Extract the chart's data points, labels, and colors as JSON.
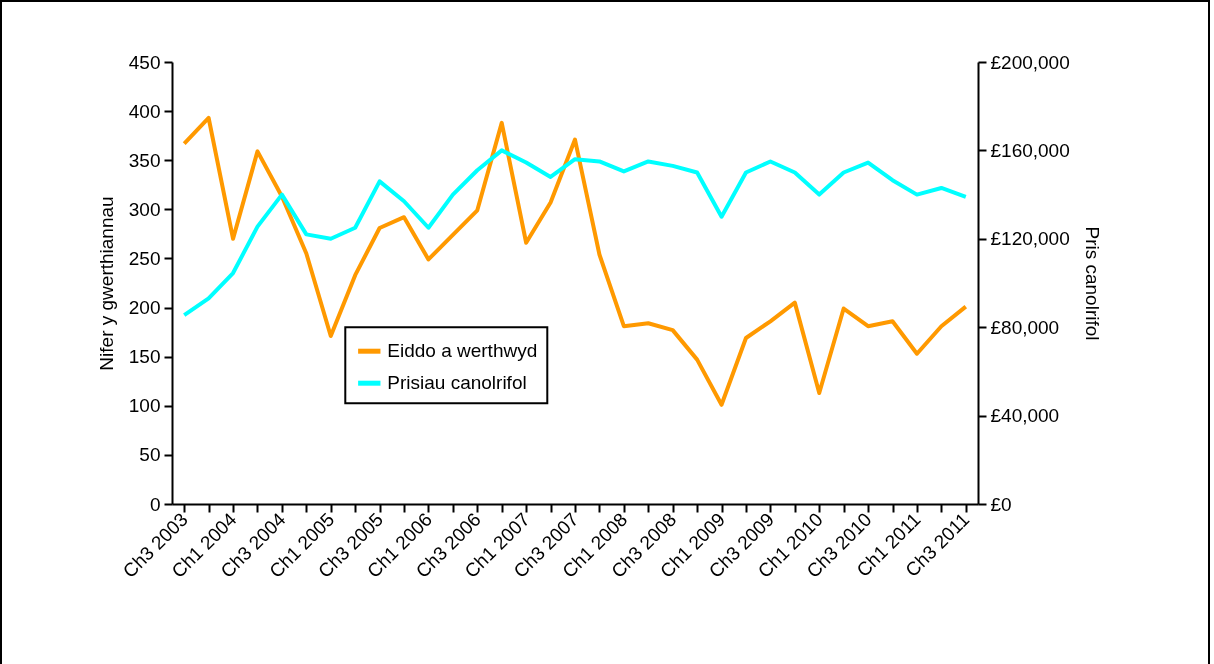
{
  "chart_data": {
    "type": "line",
    "xlabel": null,
    "ylabel": "Nifer y gwerthiannau",
    "y2label": "Pris canolrifol",
    "categories": [
      "Ch3 2003",
      null,
      "Ch1 2004",
      null,
      "Ch3 2004",
      null,
      "Ch1 2005",
      null,
      "Ch3 2005",
      null,
      "Ch1 2006",
      null,
      "Ch3 2006",
      null,
      "Ch1 2007",
      null,
      "Ch3 2007",
      null,
      "Ch1 2008",
      null,
      "Ch3 2008",
      null,
      "Ch1 2009",
      null,
      "Ch3 2009",
      null,
      "Ch1 2010",
      null,
      "Ch3 2010",
      null,
      "Ch1 2011",
      null,
      "Ch3 2011"
    ],
    "series": [
      {
        "name": "Eiddo a werthwyd",
        "color": "#ff9900",
        "values": [
          367,
          393,
          270,
          359,
          313,
          255,
          171,
          233,
          281,
          292,
          249,
          274,
          299,
          388,
          266,
          307,
          371,
          254,
          181,
          184,
          177,
          147,
          101,
          169,
          186,
          205,
          113,
          199,
          181,
          186,
          153,
          181,
          201
        ]
      },
      {
        "name": "Prisiau canolrifol",
        "color": "#00ffff",
        "axis": "y2",
        "values": [
          85500,
          93000,
          104500,
          125500,
          140000,
          122000,
          120000,
          125000,
          146000,
          137000,
          125000,
          140000,
          151000,
          160000,
          154500,
          148000,
          156000,
          155000,
          150500,
          155000,
          153000,
          150000,
          130000,
          150000,
          155000,
          150000,
          140000,
          150000,
          154500,
          146500,
          140000,
          143000,
          139000
        ]
      }
    ],
    "ylim": [
      0,
      450
    ],
    "yticks": [
      0,
      50,
      100,
      150,
      200,
      250,
      300,
      350,
      400,
      450
    ],
    "y2lim": [
      0,
      200000
    ],
    "y2ticks": [
      {
        "value": 0,
        "label": "£0"
      },
      {
        "value": 40000,
        "label": "£40,000"
      },
      {
        "value": 80000,
        "label": "£80,000"
      },
      {
        "value": 120000,
        "label": "£120,000"
      },
      {
        "value": 160000,
        "label": "£160,000"
      },
      {
        "value": 200000,
        "label": "£200,000"
      }
    ],
    "legend": "center",
    "grid": false,
    "marker": "none",
    "line_style": "solid"
  }
}
